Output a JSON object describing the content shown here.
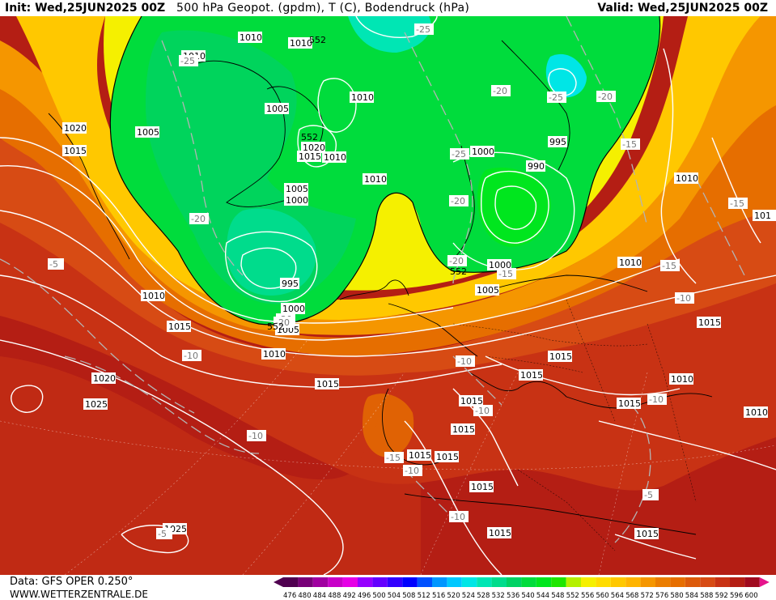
{
  "header": {
    "init": "Init: Wed,25JUN2025 00Z",
    "title": "500 hPa Geopot. (gpdm), T (C), Bodendruck (hPa)",
    "valid": "Valid: Wed,25JUN2025 00Z"
  },
  "footer": {
    "data_source": "Data: GFS OPER 0.250°",
    "website": "WWW.WETTERZENTRALE.DE"
  },
  "colors": {
    "deep_green": "#00c85a",
    "green": "#00dc28",
    "bright_green": "#1ee600",
    "yellow": "#f5f000",
    "gold": "#ffc800",
    "orange": "#f59600",
    "dark_orange": "#e66e00",
    "red_orange": "#d74b14",
    "red": "#c83214",
    "dark_red": "#b41e14",
    "isobar": "#ffffff",
    "isotherm": "#b4b4b4"
  },
  "colorbar": {
    "ticks": [
      "476",
      "480",
      "484",
      "488",
      "492",
      "496",
      "500",
      "504",
      "508",
      "512",
      "516",
      "520",
      "524",
      "528",
      "532",
      "536",
      "540",
      "544",
      "548",
      "552",
      "556",
      "560",
      "564",
      "568",
      "572",
      "576",
      "580",
      "584",
      "588",
      "592",
      "596",
      "600"
    ],
    "colors": [
      "#500050",
      "#780078",
      "#a000a0",
      "#c800c8",
      "#e600e6",
      "#9600ff",
      "#6400ff",
      "#3200ff",
      "#0000ff",
      "#0050ff",
      "#0096ff",
      "#00c8ff",
      "#00e6e6",
      "#00e6b4",
      "#00dc8c",
      "#00d264",
      "#00dc3c",
      "#00e61e",
      "#1ee600",
      "#b4f000",
      "#f5f000",
      "#ffdc00",
      "#ffc800",
      "#ffb400",
      "#f59600",
      "#eb7d00",
      "#e66e00",
      "#dc5a0a",
      "#d74b14",
      "#c83214",
      "#b41e14",
      "#a00a1e"
    ]
  },
  "map_labels": {
    "isobars": [
      {
        "t": "1010"
      },
      {
        "t": "1010"
      },
      {
        "t": "1010"
      },
      {
        "t": "1005"
      },
      {
        "t": "1005"
      },
      {
        "t": "1020"
      },
      {
        "t": "1015"
      },
      {
        "t": "1020"
      },
      {
        "t": "1015"
      },
      {
        "t": "1010"
      },
      {
        "t": "1010"
      },
      {
        "t": "1005"
      },
      {
        "t": "1000"
      },
      {
        "t": "995"
      },
      {
        "t": "1000"
      },
      {
        "t": "1005"
      },
      {
        "t": "1010"
      },
      {
        "t": "1015"
      },
      {
        "t": "1010"
      },
      {
        "t": "1015"
      },
      {
        "t": "1020"
      },
      {
        "t": "1025"
      },
      {
        "t": "1015"
      },
      {
        "t": "1015"
      },
      {
        "t": "1015"
      },
      {
        "t": "1015"
      },
      {
        "t": "1015"
      },
      {
        "t": "1015"
      },
      {
        "t": "1015"
      },
      {
        "t": "1025"
      },
      {
        "t": "1000"
      },
      {
        "t": "995"
      },
      {
        "t": "990"
      },
      {
        "t": "1000"
      },
      {
        "t": "1005"
      },
      {
        "t": "1010"
      },
      {
        "t": "1010"
      },
      {
        "t": "1015"
      },
      {
        "t": "1010"
      },
      {
        "t": "1015"
      },
      {
        "t": "1010"
      },
      {
        "t": "1015"
      },
      {
        "t": "1015"
      },
      {
        "t": "101"
      },
      {
        "t": "1010"
      }
    ],
    "isotherms": [
      {
        "t": "-25"
      },
      {
        "t": "-25"
      },
      {
        "t": "-25"
      },
      {
        "t": "-20"
      },
      {
        "t": "-20"
      },
      {
        "t": "-25"
      },
      {
        "t": "-20"
      },
      {
        "t": "-20"
      },
      {
        "t": "-20"
      },
      {
        "t": "-15"
      },
      {
        "t": "-15"
      },
      {
        "t": "-15"
      },
      {
        "t": "-5"
      },
      {
        "t": "-20"
      },
      {
        "t": "-10"
      },
      {
        "t": "-10"
      },
      {
        "t": "-10"
      },
      {
        "t": "-10"
      },
      {
        "t": "-15"
      },
      {
        "t": "-10"
      },
      {
        "t": "-10"
      },
      {
        "t": "-10"
      },
      {
        "t": "-10"
      },
      {
        "t": "-5"
      },
      {
        "t": "-5"
      },
      {
        "t": "-20"
      },
      {
        "t": "-15"
      }
    ],
    "geopot": [
      {
        "t": "552"
      },
      {
        "t": "552"
      },
      {
        "t": "552"
      },
      {
        "t": "552"
      }
    ]
  }
}
